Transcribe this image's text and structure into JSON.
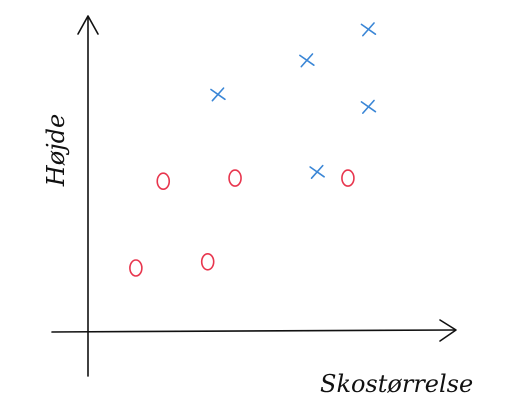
{
  "chart_data": {
    "type": "scatter",
    "xlabel": "Skostørrelse",
    "ylabel": "Højde",
    "grid": false,
    "legend": "none",
    "xlim": [
      0,
      10
    ],
    "ylim": [
      0,
      10
    ],
    "series": [
      {
        "marker": "o",
        "color": "#e8364e",
        "points": [
          {
            "x": 1.4,
            "y": 2.0
          },
          {
            "x": 3.5,
            "y": 2.2
          },
          {
            "x": 2.2,
            "y": 4.8
          },
          {
            "x": 4.3,
            "y": 4.9
          },
          {
            "x": 7.6,
            "y": 4.9
          }
        ]
      },
      {
        "marker": "x",
        "color": "#3a86d6",
        "points": [
          {
            "x": 3.8,
            "y": 7.6
          },
          {
            "x": 6.4,
            "y": 8.7
          },
          {
            "x": 8.2,
            "y": 9.7
          },
          {
            "x": 8.2,
            "y": 7.2
          },
          {
            "x": 6.7,
            "y": 5.1
          }
        ]
      }
    ]
  }
}
